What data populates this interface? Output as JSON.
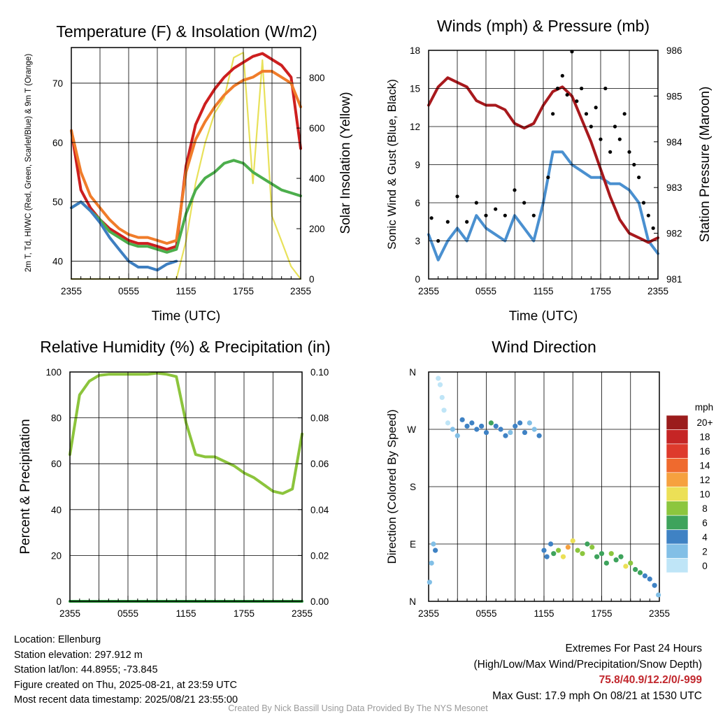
{
  "station": {
    "location": "Location: Ellenburg",
    "elevation": "Station elevation: 297.912 m",
    "latlon": "Station lat/lon: 44.8955; -73.845",
    "created": "Figure created on Thu, 2025-08-21, at 23:59 UTC",
    "recent": "Most recent data timestamp: 2025/08/21 23:55:00"
  },
  "extremes": {
    "heading": "Extremes For Past 24 Hours",
    "legend": "(High/Low/Max Wind/Precipitation/Snow Depth)",
    "values": "75.8/40.9/12.2/0/-999",
    "max_gust": "Max Gust: 17.9 mph On 08/21 at 1530 UTC"
  },
  "credit": "Created By Nick Bassill Using Data Provided By The NYS Mesonet",
  "chart_data": [
    {
      "type": "line",
      "title": "Temperature (F) & Insolation (W/m2)",
      "ylabel_left": "2m T, Td, HI/WC (Red, Green, Scarlet/Blue) & 9m T (Orange)",
      "ylabel_right": "Solar Insolation (Yellow)",
      "xlabel": "Time (UTC)",
      "x_ticks": [
        "2355",
        "0555",
        "1155",
        "1755",
        "2355"
      ],
      "ylim": [
        37,
        76
      ],
      "y_ticks": [
        40,
        50,
        60,
        70
      ],
      "y2lim": [
        0,
        920
      ],
      "y2_ticks": [
        0,
        200,
        400,
        600,
        800
      ],
      "x_hours": [
        0,
        1,
        2,
        3,
        4,
        5,
        6,
        7,
        8,
        9,
        10,
        11,
        12,
        13,
        14,
        15,
        16,
        17,
        18,
        19,
        20,
        21,
        22,
        23,
        24
      ],
      "series": [
        {
          "color": "#e8e15a",
          "axis": "right",
          "values": [
            0,
            0,
            0,
            0,
            0,
            0,
            0,
            0,
            0,
            0,
            0,
            0,
            150,
            380,
            540,
            660,
            720,
            880,
            900,
            380,
            870,
            250,
            150,
            50,
            0
          ]
        },
        {
          "color": "#cd1f1f",
          "axis": "left",
          "values": [
            62,
            52,
            49,
            47,
            45.5,
            44.5,
            43.5,
            43,
            43,
            42.5,
            42,
            42.5,
            56,
            63,
            66.5,
            69,
            71,
            72.5,
            73.5,
            74.5,
            75,
            74,
            73,
            71,
            59
          ]
        },
        {
          "color": "#f07c2a",
          "axis": "left",
          "values": [
            62,
            55,
            51,
            49,
            47,
            45.5,
            44.5,
            44,
            44,
            43.5,
            43,
            43.5,
            55,
            60.5,
            63.5,
            66,
            68,
            69.5,
            70.5,
            71,
            72,
            72,
            71,
            70,
            66
          ]
        },
        {
          "color": "#4cae4c",
          "axis": "left",
          "values": [
            49,
            50,
            48.5,
            47,
            45,
            44,
            43,
            42.5,
            42.5,
            42,
            41.5,
            42,
            48,
            52,
            54,
            55,
            56.5,
            57,
            56.5,
            55,
            54,
            53,
            52,
            51.5,
            51
          ]
        },
        {
          "color": "#3e7fc1",
          "axis": "left",
          "values": [
            49,
            50,
            48.5,
            46.5,
            44,
            42,
            40,
            39,
            39,
            38.5,
            39.5,
            40
          ]
        }
      ]
    },
    {
      "type": "line",
      "title": "Winds (mph) & Pressure (mb)",
      "ylabel_left": "Sonic Wind & Gust (Blue, Black)",
      "ylabel_right": "Station Pressure (Maroon)",
      "xlabel": "Time (UTC)",
      "x_ticks": [
        "2355",
        "0555",
        "1155",
        "1755",
        "2355"
      ],
      "ylim": [
        0,
        18
      ],
      "y_ticks": [
        0,
        3,
        6,
        9,
        12,
        15,
        18
      ],
      "y2lim": [
        981,
        986
      ],
      "y2_ticks": [
        981,
        982,
        983,
        984,
        985,
        986
      ],
      "x_hours": [
        0,
        1,
        2,
        3,
        4,
        5,
        6,
        7,
        8,
        9,
        10,
        11,
        12,
        13,
        14,
        15,
        16,
        17,
        18,
        19,
        20,
        21,
        22,
        23,
        24
      ],
      "series": [
        {
          "color": "#4a90d0",
          "axis": "left",
          "values": [
            3.5,
            1.5,
            3,
            4,
            3,
            5,
            4,
            3.5,
            3,
            5,
            4,
            3,
            6,
            10,
            10,
            9,
            8.5,
            8,
            8,
            7.5,
            7.5,
            7,
            6,
            3,
            2
          ]
        },
        {
          "color": "#a8191d",
          "axis": "right",
          "values": [
            984.8,
            985.2,
            985.4,
            985.3,
            985.2,
            984.9,
            984.8,
            984.8,
            984.7,
            984.4,
            984.3,
            984.4,
            984.8,
            985.1,
            985.2,
            985.0,
            984.5,
            984.0,
            983.4,
            982.8,
            982.3,
            982.0,
            981.9,
            981.8,
            981.9
          ]
        }
      ],
      "gust_points": {
        "color": "#000000",
        "x": [
          0.3,
          1,
          2,
          3,
          4,
          5,
          6,
          7,
          8,
          9,
          10,
          11,
          12.5,
          13,
          13.5,
          14,
          14.5,
          15,
          15.5,
          16,
          16.5,
          17,
          17.5,
          18,
          18.5,
          19,
          19.5,
          20,
          20.5,
          21,
          21.5,
          22,
          22.5,
          23,
          23.5
        ],
        "values": [
          4.8,
          3,
          4.5,
          6.5,
          4.5,
          6,
          5,
          5.5,
          5,
          7,
          6,
          5,
          8,
          13,
          15,
          16,
          14.5,
          17.9,
          14,
          15,
          13,
          12,
          13.5,
          11,
          15,
          10,
          12,
          11,
          13,
          10,
          9,
          8,
          6,
          5,
          4
        ]
      }
    },
    {
      "type": "line",
      "title": "Relative Humidity (%) & Precipitation (in)",
      "ylabel_left": "Percent & Precipitation",
      "x_ticks": [
        "2355",
        "0555",
        "1155",
        "1755",
        "2355"
      ],
      "ylim": [
        0,
        100
      ],
      "y_ticks": [
        0,
        20,
        40,
        60,
        80,
        100
      ],
      "y2lim": [
        0,
        0.1
      ],
      "y2_ticks": [
        "0.00",
        "0.02",
        "0.04",
        "0.06",
        "0.08",
        "0.10"
      ],
      "x_hours": [
        0,
        1,
        2,
        3,
        4,
        5,
        6,
        7,
        8,
        9,
        10,
        11,
        12,
        13,
        14,
        15,
        16,
        17,
        18,
        19,
        20,
        21,
        22,
        23,
        24
      ],
      "series": [
        {
          "color": "#8cc43c",
          "axis": "left",
          "values": [
            64,
            90,
            96,
            98.5,
            99,
            99,
            99,
            99,
            99,
            99.5,
            99,
            98,
            78,
            64,
            63,
            63,
            61,
            59,
            56,
            54,
            51,
            48,
            47,
            49,
            73
          ]
        },
        {
          "color": "#2e9e3e",
          "axis": "right",
          "values": [
            0,
            0,
            0,
            0,
            0,
            0,
            0,
            0,
            0,
            0,
            0,
            0,
            0,
            0,
            0,
            0,
            0,
            0,
            0,
            0,
            0,
            0,
            0,
            0,
            0
          ]
        }
      ]
    },
    {
      "type": "scatter",
      "title": "Wind Direction",
      "ylabel_left": "Direction (Colored By Speed)",
      "x_ticks": [
        "2355",
        "0555",
        "1155",
        "1755",
        "2355"
      ],
      "y_ticks": [
        "N",
        "E",
        "S",
        "W",
        "N"
      ],
      "ylim": [
        0,
        360
      ],
      "colorbar": {
        "label": "mph",
        "labels": [
          "20+",
          "18",
          "16",
          "14",
          "12",
          "10",
          "8",
          "6",
          "4",
          "2",
          "0"
        ],
        "colors": [
          "#9b1c1c",
          "#c52525",
          "#de3a2c",
          "#ef6a2e",
          "#f6a13f",
          "#ece056",
          "#8cc63e",
          "#3ea35c",
          "#3f82c4",
          "#82bfe6",
          "#bfe5f7"
        ]
      },
      "points": {
        "x": [
          0.1,
          0.3,
          0.5,
          0.7,
          1,
          1.2,
          1.4,
          1.6,
          2,
          2.5,
          3,
          3.5,
          4,
          4.5,
          5,
          5.5,
          6,
          6.5,
          7,
          7.5,
          8,
          8.5,
          9,
          9.5,
          10,
          10.5,
          11,
          11.5,
          12,
          12.3,
          12.7,
          13,
          13.5,
          14,
          14.5,
          15,
          15.5,
          16,
          16.5,
          17,
          17.5,
          18,
          18.5,
          19,
          19.5,
          20,
          20.5,
          21,
          21.5,
          22,
          22.5,
          23,
          23.5,
          23.9
        ],
        "values": [
          30,
          60,
          90,
          80,
          350,
          340,
          320,
          300,
          280,
          270,
          260,
          285,
          275,
          280,
          270,
          275,
          265,
          280,
          275,
          270,
          260,
          265,
          275,
          280,
          265,
          280,
          270,
          260,
          80,
          70,
          90,
          75,
          80,
          70,
          85,
          95,
          80,
          75,
          90,
          85,
          70,
          75,
          60,
          75,
          65,
          70,
          55,
          60,
          50,
          45,
          40,
          35,
          25,
          10
        ],
        "speed": [
          3,
          3,
          3,
          4,
          1,
          1,
          1,
          1,
          1,
          2,
          3,
          4,
          4,
          5,
          4,
          4,
          4,
          6,
          5,
          4,
          4,
          3,
          5,
          4,
          4,
          3,
          3,
          4,
          4,
          4,
          5,
          6,
          8,
          10,
          12,
          10,
          9,
          8,
          7,
          8,
          7,
          6,
          6,
          9,
          6,
          7,
          10,
          8,
          6,
          6,
          5,
          4,
          4,
          3
        ]
      }
    }
  ]
}
